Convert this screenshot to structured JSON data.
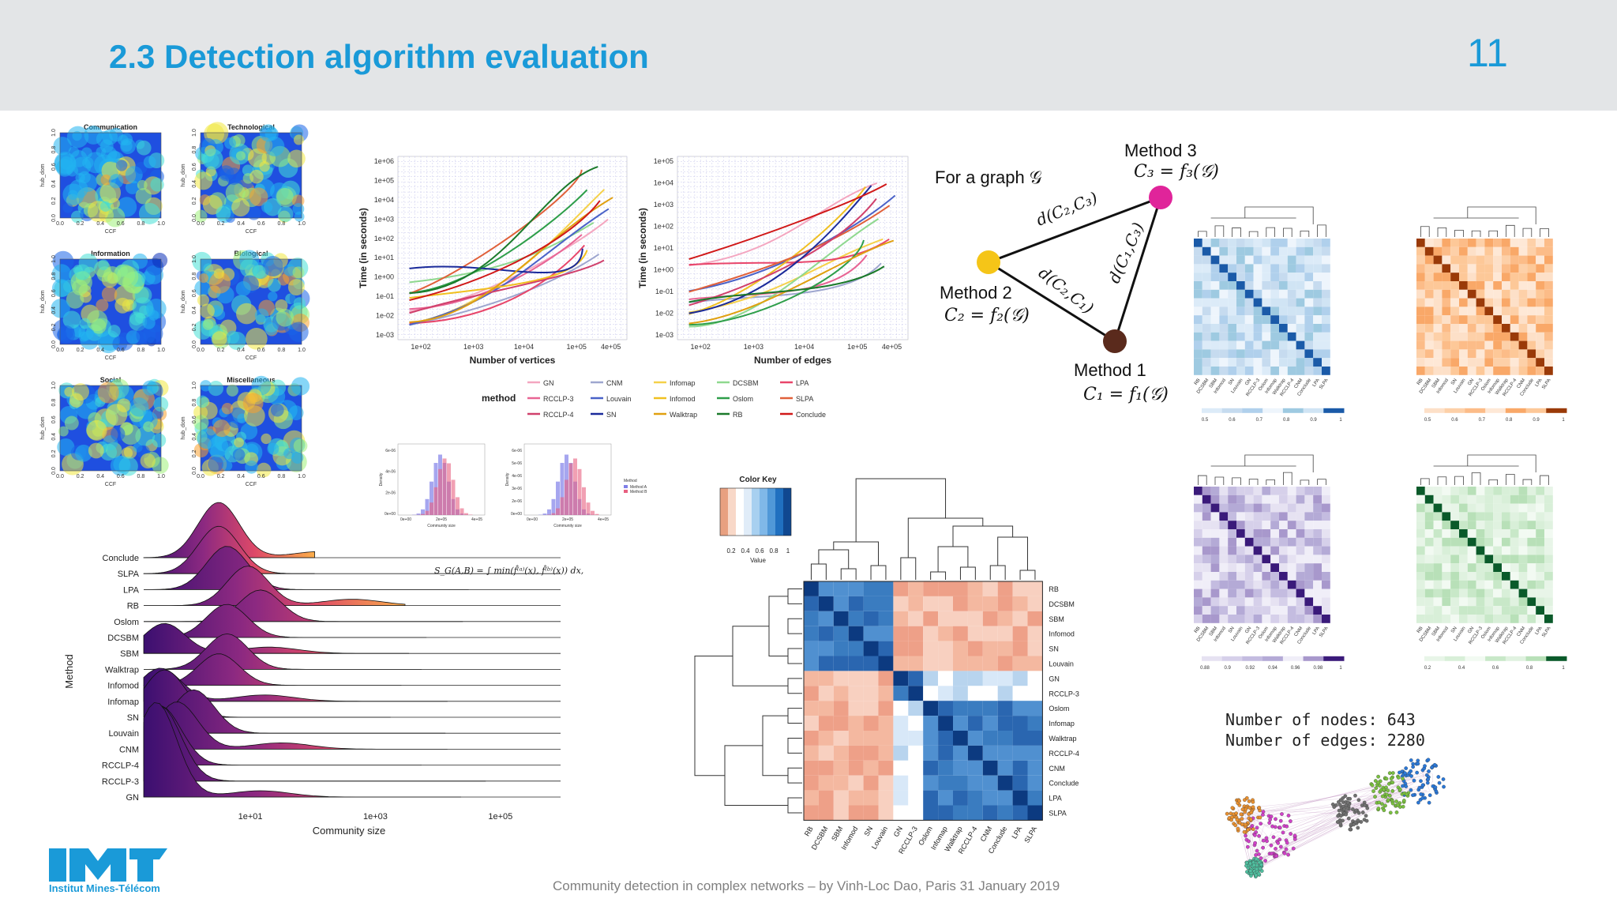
{
  "slide": {
    "title": "2.3 Detection algorithm evaluation",
    "page_number": "11",
    "footer": "Community detection in complex networks – by Vinh-Loc Dao, Paris 31 January 2019",
    "logo_text": "Institut Mines-Télécom",
    "brand_color": "#1a9ad8",
    "header_bg": "#e3e5e7"
  },
  "heatmaps": {
    "titles": [
      "Communication",
      "Technological",
      "Information",
      "Biological",
      "Social",
      "Miscellaneous"
    ],
    "xlabel": "CCF",
    "ylabel": "hub_dom",
    "ticks": [
      "0.0",
      "0.2",
      "0.4",
      "0.6",
      "0.8",
      "1.0"
    ]
  },
  "runtime_vertices": {
    "xlabel": "Number of vertices",
    "ylabel": "Time (in seconds)",
    "xticks": [
      "1e+02",
      "1e+03",
      "1e+04",
      "1e+05",
      "4e+05"
    ],
    "yticks": [
      "1e+06",
      "1e+05",
      "1e+04",
      "1e+03",
      "1e+02",
      "1e+01",
      "1e+00",
      "1e-01",
      "1e-02",
      "1e-03"
    ]
  },
  "runtime_edges": {
    "xlabel": "Number of edges",
    "ylabel": "Time (in seconds)",
    "xticks": [
      "1e+02",
      "1e+03",
      "1e+04",
      "1e+05",
      "4e+05"
    ],
    "yticks": [
      "1e+05",
      "1e+04",
      "1e+03",
      "1e+02",
      "1e+01",
      "1e+00",
      "1e-01",
      "1e-02",
      "1e-03"
    ]
  },
  "method_legend": {
    "title": "method",
    "items": [
      {
        "name": "GN",
        "color": "#f4a6c0"
      },
      {
        "name": "CNM",
        "color": "#9ea6cf"
      },
      {
        "name": "Infomap",
        "color": "#f5d14a"
      },
      {
        "name": "DCSBM",
        "color": "#8fd88f"
      },
      {
        "name": "LPA",
        "color": "#e8456a"
      },
      {
        "name": "RCCLP-3",
        "color": "#e86494"
      },
      {
        "name": "Louvain",
        "color": "#4a62c8"
      },
      {
        "name": "Infomod",
        "color": "#f0c020"
      },
      {
        "name": "Oslom",
        "color": "#2e9e4a"
      },
      {
        "name": "SLPA",
        "color": "#e0603a"
      },
      {
        "name": "RCCLP-4",
        "color": "#d0406c"
      },
      {
        "name": "SN",
        "color": "#1a2a9a"
      },
      {
        "name": "Walktrap",
        "color": "#e0a010"
      },
      {
        "name": "RB",
        "color": "#1a7a2a"
      },
      {
        "name": "Conclude",
        "color": "#d01818"
      }
    ]
  },
  "density_plots": {
    "ylabel": "Density",
    "xlabel": "Community size",
    "left_yticks": [
      "6e-06",
      "4e-06",
      "2e-06",
      "0e+00"
    ],
    "left_xticks": [
      "0e+00",
      "2e+05",
      "4e+05"
    ],
    "right_yticks": [
      "6e-06",
      "5e-06",
      "4e-06",
      "3e-06",
      "2e-06",
      "0e+00"
    ],
    "right_xticks": [
      "0e+00",
      "2e+05",
      "4e+05"
    ],
    "legend_title": "Method",
    "legend_items": [
      "Method A",
      "Method B"
    ]
  },
  "ridgeline": {
    "methods": [
      "Conclude",
      "SLPA",
      "LPA",
      "RB",
      "Oslom",
      "DCSBM",
      "SBM",
      "Walktrap",
      "Infomod",
      "Infomap",
      "SN",
      "Louvain",
      "CNM",
      "RCCLP-4",
      "RCCLP-3",
      "GN"
    ],
    "ylabel": "Method",
    "xlabel": "Community size",
    "xticks": [
      "1e+01",
      "1e+03",
      "1e+05"
    ],
    "formula": "S_G(A,B) = ∫ min(f̂⁽ᵃ⁾(x), f̂⁽ᵇ⁾(x)) dx,"
  },
  "triangle": {
    "for_graph": "For a graph 𝒢",
    "method3": "Method 3",
    "c3": "C₃ = f₃(𝒢)",
    "method2": "Method 2",
    "c2": "C₂ = f₂(𝒢)",
    "method1": "Method 1",
    "c1": "C₁ = f₁(𝒢)",
    "d23": "d(C₂,C₃)",
    "d21": "d(C₂,C₁)",
    "d13": "d(C₁,C₃)",
    "colors": {
      "m1": "#5a2a1c",
      "m2": "#f5c518",
      "m3": "#e0249a"
    }
  },
  "center_heatmap": {
    "color_key_title": "Color Key",
    "color_key_label": "Value",
    "color_key_ticks": [
      "0.2",
      "0.4",
      "0.6",
      "0.8",
      "1"
    ],
    "row_labels": [
      "RB",
      "DCSBM",
      "SBM",
      "Infomod",
      "SN",
      "Louvain",
      "GN",
      "RCCLP-3",
      "Oslom",
      "Infomap",
      "Walktrap",
      "RCCLP-4",
      "CNM",
      "Conclude",
      "LPA",
      "SLPA"
    ],
    "col_labels": [
      "RB",
      "DCSBM",
      "SBM",
      "Infomod",
      "SN",
      "Louvain",
      "GN",
      "RCCLP-3",
      "Oslom",
      "Infomap",
      "Walktrap",
      "RCCLP-4",
      "CNM",
      "Conclude",
      "LPA",
      "SLPA"
    ]
  },
  "small_heatmaps": [
    {
      "colorbar_ticks": [
        "0.5",
        "0.6",
        "0.7",
        "0.8",
        "0.9",
        "1"
      ],
      "color": "#1a5aa8"
    },
    {
      "colorbar_ticks": [
        "0.5",
        "0.6",
        "0.7",
        "0.8",
        "0.9",
        "1"
      ],
      "color": "#9a3a08"
    },
    {
      "colorbar_ticks": [
        "0.88",
        "0.9",
        "0.92",
        "0.94",
        "0.96",
        "0.98",
        "1"
      ],
      "color": "#3a1a7a"
    },
    {
      "colorbar_ticks": [
        "0.2",
        "0.4",
        "0.6",
        "0.8",
        "1"
      ],
      "color": "#0a5a2a"
    }
  ],
  "network": {
    "nodes_label": "Number of nodes:",
    "nodes_value": "643",
    "edges_label": "Number of edges:",
    "edges_value": "2280"
  }
}
